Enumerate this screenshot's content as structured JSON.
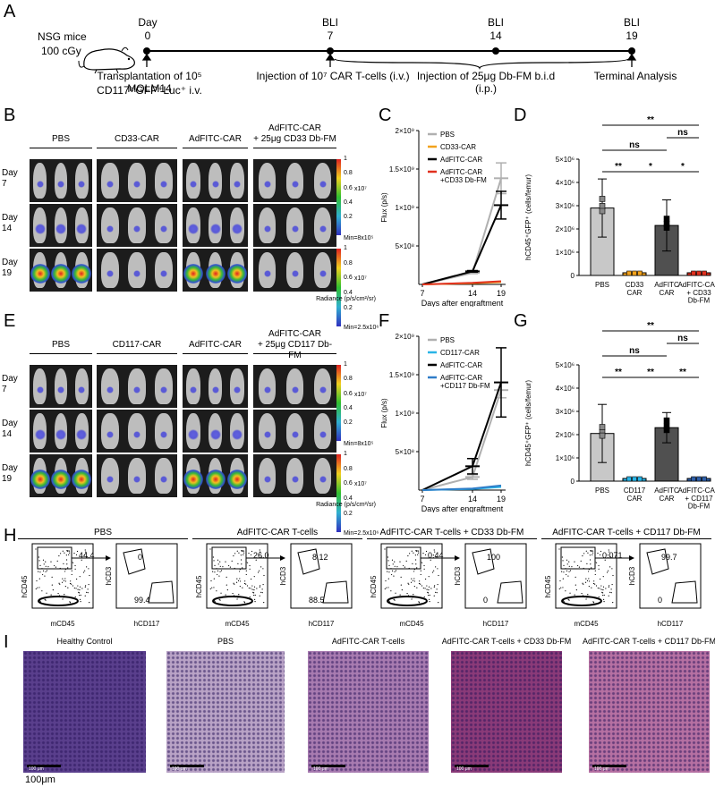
{
  "panels": {
    "A": "A",
    "B": "B",
    "C": "C",
    "D": "D",
    "E": "E",
    "F": "F",
    "G": "G",
    "H": "H",
    "I": "I"
  },
  "timeline": {
    "strain": "NSG mice",
    "dose": "100 cGy",
    "tick_top": [
      "Day",
      "BLI",
      "BLI",
      "BLI"
    ],
    "tick_day": [
      "0",
      "7",
      "14",
      "19"
    ],
    "ev1_line1": "Transplantation of 10⁵ MOLM14",
    "ev1_line2": "CD117ʰⁱGFP⁺Luc⁺ i.v.",
    "ev2": "Injection of 10⁷ CAR T-cells (i.v.)",
    "ev3": "Injection of 25μg Db-FM b.i.d (i.p.)",
    "ev4": "Terminal Analysis"
  },
  "bli_B": {
    "groups": [
      "PBS",
      "CD33-CAR",
      "AdFITC-CAR",
      "AdFITC-CAR\n+ 25μg CD33 Db-FM"
    ],
    "rows": [
      "Day\n7",
      "Day\n14",
      "Day\n19"
    ],
    "scale_ticks": [
      "1",
      "0.8",
      "0.6",
      "0.4",
      "0.2"
    ],
    "unit": "x10⁷",
    "min_top": "Min=8x10⁵",
    "min_bottom": "Min=2.5x10⁶",
    "radiance": "Radiance (p/s/cm²/sr)"
  },
  "bli_E": {
    "groups": [
      "PBS",
      "CD117-CAR",
      "AdFITC-CAR",
      "AdFITC-CAR\n+ 25μg CD117 Db-FM"
    ],
    "rows": [
      "Day\n7",
      "Day\n14",
      "Day\n19"
    ],
    "scale_ticks": [
      "1",
      "0.8",
      "0.6",
      "0.4",
      "0.2"
    ],
    "unit": "x10⁷",
    "min_top": "Min=8x10⁵",
    "min_bottom": "Min=2.5x10⁶",
    "radiance": "Radiance (p/s/cm²/sr)"
  },
  "chart_data": [
    {
      "id": "C",
      "type": "line",
      "ylabel": "Flux (p/s)",
      "xlabel": "Days after engraftment",
      "x": [
        7,
        14,
        19
      ],
      "ylim": [
        0,
        2000000000
      ],
      "yticks": [
        "2×10⁹",
        "1.5×10⁹",
        "1×10⁹",
        "5×10⁸"
      ],
      "series": [
        {
          "name": "PBS",
          "color": "#b0b0b0",
          "values": [
            0,
            150000000,
            1380000000
          ],
          "err": [
            0,
            10000000,
            200000000
          ]
        },
        {
          "name": "CD33-CAR",
          "color": "#f2a21c",
          "values": [
            0,
            15000000,
            30000000
          ],
          "err": [
            0,
            0,
            0
          ]
        },
        {
          "name": "AdFITC-CAR",
          "color": "#000000",
          "values": [
            0,
            170000000,
            1030000000
          ],
          "err": [
            0,
            10000000,
            180000000
          ]
        },
        {
          "name": "AdFITC-CAR\n+CD33 Db-FM",
          "color": "#e0301e",
          "values": [
            0,
            20000000,
            40000000
          ],
          "err": [
            0,
            0,
            0
          ]
        }
      ]
    },
    {
      "id": "D",
      "type": "bar",
      "ylabel": "hCD45⁺GFP⁺ (cells/femur)",
      "ylim": [
        0,
        5000000
      ],
      "yticks": [
        "5×10⁶",
        "4×10⁶",
        "3×10⁶",
        "2×10⁶",
        "1×10⁶",
        "0"
      ],
      "categories": [
        "PBS",
        "CD33\nCAR",
        "AdFITC\nCAR",
        "AdFITC-CAR\n+ CD33\nDb-FM"
      ],
      "values": [
        2900000,
        0,
        2150000,
        0
      ],
      "err": [
        1250000,
        0,
        1100000,
        0
      ],
      "colors": [
        "#c8c8c8",
        "#f2a21c",
        "#505050",
        "#e0301e"
      ],
      "sig": [
        {
          "label": "**",
          "from": 0,
          "to": 3
        },
        {
          "label": "ns",
          "from": 2,
          "to": 3
        },
        {
          "label": "ns",
          "from": 0,
          "to": 2
        },
        {
          "label": "**",
          "from": 0,
          "to": 1
        },
        {
          "label": "*",
          "from": 1,
          "to": 2
        },
        {
          "label": "*",
          "from": 2,
          "to": 3
        }
      ]
    },
    {
      "id": "F",
      "type": "line",
      "ylabel": "Flux (p/s)",
      "xlabel": "Days after engraftment",
      "x": [
        7,
        14,
        19
      ],
      "ylim": [
        0,
        2000000000
      ],
      "yticks": [
        "2×10⁹",
        "1.5×10⁹",
        "1×10⁹",
        "5×10⁸"
      ],
      "series": [
        {
          "name": "PBS",
          "color": "#b0b0b0",
          "values": [
            0,
            170000000,
            1300000000
          ],
          "err": [
            0,
            30000000,
            100000000
          ]
        },
        {
          "name": "CD117-CAR",
          "color": "#29b4e6",
          "values": [
            0,
            15000000,
            40000000
          ],
          "err": [
            0,
            0,
            0
          ]
        },
        {
          "name": "AdFITC-CAR",
          "color": "#000000",
          "values": [
            0,
            310000000,
            1400000000
          ],
          "err": [
            0,
            100000000,
            450000000
          ]
        },
        {
          "name": "AdFITC-CAR\n+CD117 Db-FM",
          "color": "#2f7dc8",
          "values": [
            0,
            20000000,
            60000000
          ],
          "err": [
            0,
            0,
            0
          ]
        }
      ]
    },
    {
      "id": "G",
      "type": "bar",
      "ylabel": "hCD45⁺GFP⁺ (cells/femur)",
      "ylim": [
        0,
        5000000
      ],
      "yticks": [
        "5×10⁶",
        "4×10⁶",
        "3×10⁶",
        "2×10⁶",
        "1×10⁶",
        "0"
      ],
      "categories": [
        "PBS",
        "CD117\nCAR",
        "AdFITC\nCAR",
        "AdFITC-CAR\n+ CD117\nDb-FM"
      ],
      "values": [
        2050000,
        0,
        2300000,
        0
      ],
      "err": [
        1250000,
        0,
        650000,
        0
      ],
      "colors": [
        "#c8c8c8",
        "#29b4e6",
        "#505050",
        "#2f5fa8"
      ],
      "sig": [
        {
          "label": "**",
          "from": 0,
          "to": 3
        },
        {
          "label": "ns",
          "from": 2,
          "to": 3
        },
        {
          "label": "ns",
          "from": 0,
          "to": 2
        },
        {
          "label": "**",
          "from": 0,
          "to": 1
        },
        {
          "label": "**",
          "from": 1,
          "to": 2
        },
        {
          "label": "**",
          "from": 2,
          "to": 3
        }
      ]
    }
  ],
  "flow": [
    {
      "title": "PBS",
      "g1": "44.4",
      "g2": "0",
      "g3": "99.4"
    },
    {
      "title": "AdFITC-CAR T-cells",
      "g1": "26.0",
      "g2": "8.12",
      "g3": "88.5"
    },
    {
      "title": "AdFITC-CAR T-cells + CD33 Db-FM",
      "g1": "0.44",
      "g2": "100",
      "g3": "0"
    },
    {
      "title": "AdFITC-CAR T-cells + CD117 Db-FM",
      "g1": "0.071",
      "g2": "99.7",
      "g3": "0"
    }
  ],
  "flow_axes": {
    "hcd45": "hCD45",
    "mcd45": "mCD45",
    "hcd3": "hCD3",
    "hcd117": "hCD117"
  },
  "histo": {
    "titles": [
      "Healthy Control",
      "PBS",
      "AdFITC-CAR T-cells",
      "AdFITC-CAR T-cells + CD33 Db-FM",
      "AdFITC-CAR T-cells + CD117 Db-FM"
    ],
    "scale": "100μm",
    "scale_inner": "100 μm",
    "colors": [
      "#5a3f8c",
      "#b9a3c6",
      "#a87bb0",
      "#8a3a78",
      "#b670a2"
    ]
  }
}
